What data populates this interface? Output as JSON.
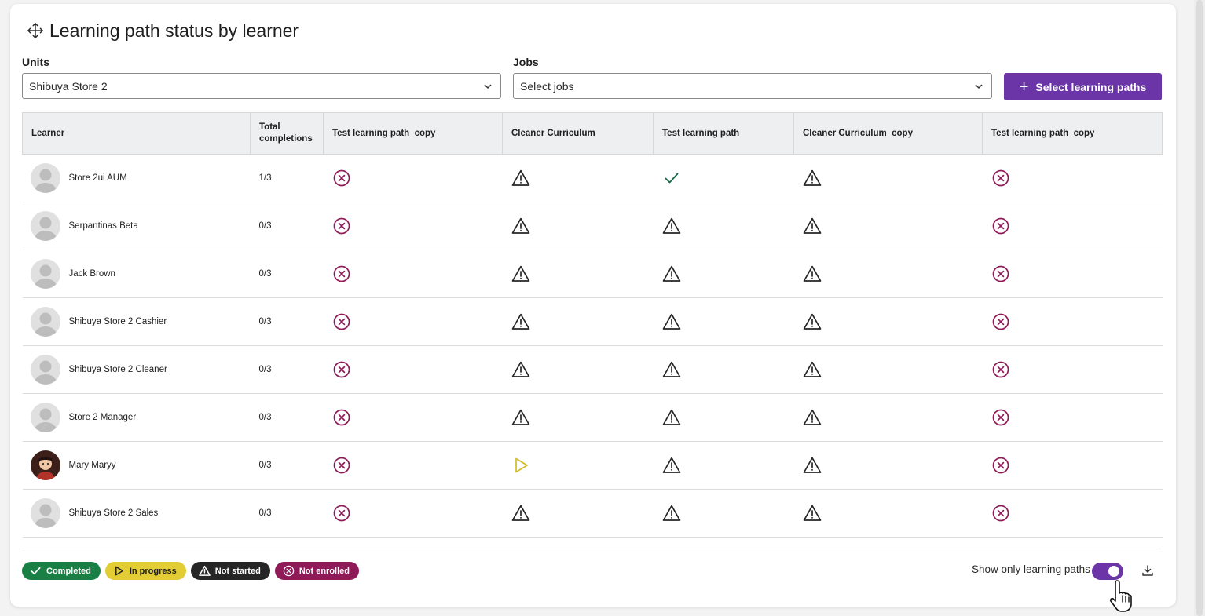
{
  "header": {
    "title": "Learning path status by learner"
  },
  "filters": {
    "units_label": "Units",
    "units_value": "Shibuya Store 2",
    "jobs_label": "Jobs",
    "jobs_placeholder": "Select jobs",
    "select_paths_button": "Select learning paths"
  },
  "table": {
    "headers": [
      "Learner",
      "Total completions",
      "Test learning path_copy",
      "Cleaner Curriculum",
      "Test learning path",
      "Cleaner Curriculum_copy",
      "Test learning path_copy"
    ],
    "rows": [
      {
        "name": "Store 2ui AUM",
        "completions": "1/3",
        "statuses": [
          "not-enrolled",
          "not-started",
          "completed",
          "not-started",
          "not-enrolled"
        ]
      },
      {
        "name": "Serpantinas Beta",
        "completions": "0/3",
        "statuses": [
          "not-enrolled",
          "not-started",
          "not-started",
          "not-started",
          "not-enrolled"
        ]
      },
      {
        "name": "Jack Brown",
        "completions": "0/3",
        "statuses": [
          "not-enrolled",
          "not-started",
          "not-started",
          "not-started",
          "not-enrolled"
        ]
      },
      {
        "name": "Shibuya Store 2 Cashier",
        "completions": "0/3",
        "statuses": [
          "not-enrolled",
          "not-started",
          "not-started",
          "not-started",
          "not-enrolled"
        ]
      },
      {
        "name": "Shibuya Store 2 Cleaner",
        "completions": "0/3",
        "statuses": [
          "not-enrolled",
          "not-started",
          "not-started",
          "not-started",
          "not-enrolled"
        ]
      },
      {
        "name": "Store 2 Manager",
        "completions": "0/3",
        "statuses": [
          "not-enrolled",
          "not-started",
          "not-started",
          "not-started",
          "not-enrolled"
        ]
      },
      {
        "name": "Mary Maryy",
        "completions": "0/3",
        "photo": true,
        "statuses": [
          "not-enrolled",
          "in-progress",
          "not-started",
          "not-started",
          "not-enrolled"
        ]
      },
      {
        "name": "Shibuya Store 2 Sales",
        "completions": "0/3",
        "statuses": [
          "not-enrolled",
          "not-started",
          "not-started",
          "not-started",
          "not-enrolled"
        ]
      }
    ]
  },
  "legend": {
    "completed": "Completed",
    "in_progress": "In progress",
    "not_started": "Not started",
    "not_enrolled": "Not enrolled"
  },
  "footer": {
    "toggle_label": "Show only learning paths",
    "toggle_on": true
  },
  "colors": {
    "accent": "#6b35a8",
    "completed": "#1a7f45",
    "in_progress": "#e3cd35",
    "not_started": "#262626",
    "not_enrolled": "#8e1b57"
  },
  "icons": {
    "title": "move-icon",
    "download": "download-icon",
    "dropdown": "chevron-down-icon"
  }
}
